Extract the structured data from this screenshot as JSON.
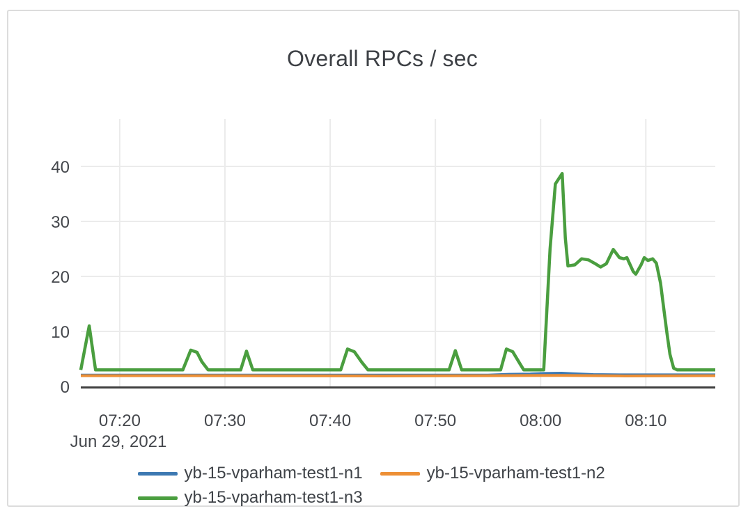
{
  "card": {
    "border_color": "#dcdcdc",
    "background": "#ffffff"
  },
  "chart_data": {
    "type": "line",
    "title": "Overall RPCs / sec",
    "grid": true,
    "legend_position": "bottom-center",
    "colors": {
      "gridline": "#ebebeb",
      "zeroline": "#3f3f3f",
      "tick_text": "#44474c",
      "title_text": "#3d4045"
    },
    "x_axis": {
      "unit": "decimal minutes after 07:00, Jun 29 2021 (estimated from pixels)",
      "min": 16.3,
      "max": 76.6,
      "date_label": "Jun 29, 2021",
      "ticks": [
        {
          "t": 20,
          "label": "07:20"
        },
        {
          "t": 30,
          "label": "07:30"
        },
        {
          "t": 40,
          "label": "07:40"
        },
        {
          "t": 50,
          "label": "07:50"
        },
        {
          "t": 60,
          "label": "08:00"
        },
        {
          "t": 70,
          "label": "08:10"
        }
      ]
    },
    "y_axis": {
      "min": 0,
      "max": 48.6,
      "ticks": [
        {
          "v": 0,
          "label": "0"
        },
        {
          "v": 10,
          "label": "10"
        },
        {
          "v": 20,
          "label": "20"
        },
        {
          "v": 30,
          "label": "30"
        },
        {
          "v": 40,
          "label": "40"
        }
      ]
    },
    "series": [
      {
        "name": "yb-15-vparham-test1-n1",
        "color": "#3d79b2",
        "line_width": 4,
        "points": [
          [
            16.3,
            2.05
          ],
          [
            40.0,
            2.05
          ],
          [
            55.0,
            2.05
          ],
          [
            57.0,
            2.2
          ],
          [
            59.0,
            2.25
          ],
          [
            60.3,
            2.35
          ],
          [
            62.0,
            2.4
          ],
          [
            63.0,
            2.3
          ],
          [
            65.0,
            2.15
          ],
          [
            68.0,
            2.1
          ],
          [
            76.6,
            2.1
          ]
        ]
      },
      {
        "name": "yb-15-vparham-test1-n2",
        "color": "#ed8f35",
        "line_width": 4,
        "points": [
          [
            16.3,
            1.95
          ],
          [
            30.0,
            1.95
          ],
          [
            45.0,
            1.9
          ],
          [
            55.0,
            1.95
          ],
          [
            62.0,
            2.0
          ],
          [
            68.0,
            1.9
          ],
          [
            76.6,
            1.95
          ]
        ]
      },
      {
        "name": "yb-15-vparham-test1-n3",
        "color": "#4a9e3f",
        "line_width": 4.5,
        "points": [
          [
            16.3,
            3
          ],
          [
            17.1,
            11
          ],
          [
            17.7,
            3
          ],
          [
            26.0,
            3
          ],
          [
            26.75,
            6.6
          ],
          [
            27.35,
            6.2
          ],
          [
            27.8,
            4.5
          ],
          [
            28.4,
            3
          ],
          [
            31.5,
            3
          ],
          [
            32.05,
            6.4
          ],
          [
            32.65,
            3
          ],
          [
            41.0,
            3
          ],
          [
            41.65,
            6.8
          ],
          [
            42.3,
            6.3
          ],
          [
            43.0,
            4.4
          ],
          [
            43.6,
            3
          ],
          [
            51.3,
            3
          ],
          [
            51.9,
            6.5
          ],
          [
            52.5,
            3
          ],
          [
            56.2,
            3
          ],
          [
            56.75,
            6.8
          ],
          [
            57.35,
            6.3
          ],
          [
            57.95,
            4.4
          ],
          [
            58.4,
            3
          ],
          [
            60.3,
            3
          ],
          [
            60.9,
            25
          ],
          [
            61.4,
            36.8
          ],
          [
            62.05,
            38.7
          ],
          [
            62.35,
            27
          ],
          [
            62.6,
            21.9
          ],
          [
            63.25,
            22.1
          ],
          [
            63.9,
            23.2
          ],
          [
            64.55,
            23.0
          ],
          [
            65.2,
            22.3
          ],
          [
            65.7,
            21.7
          ],
          [
            66.25,
            22.3
          ],
          [
            66.9,
            24.9
          ],
          [
            67.5,
            23.4
          ],
          [
            67.9,
            23.2
          ],
          [
            68.2,
            23.4
          ],
          [
            68.8,
            20.9
          ],
          [
            69.05,
            20.4
          ],
          [
            69.55,
            22.1
          ],
          [
            69.85,
            23.4
          ],
          [
            70.2,
            22.9
          ],
          [
            70.65,
            23.2
          ],
          [
            71.0,
            22.4
          ],
          [
            71.4,
            18.8
          ],
          [
            71.7,
            14.2
          ],
          [
            72.0,
            9.8
          ],
          [
            72.3,
            5.8
          ],
          [
            72.65,
            3.3
          ],
          [
            73.0,
            3.0
          ],
          [
            76.6,
            3.0
          ]
        ]
      }
    ]
  }
}
